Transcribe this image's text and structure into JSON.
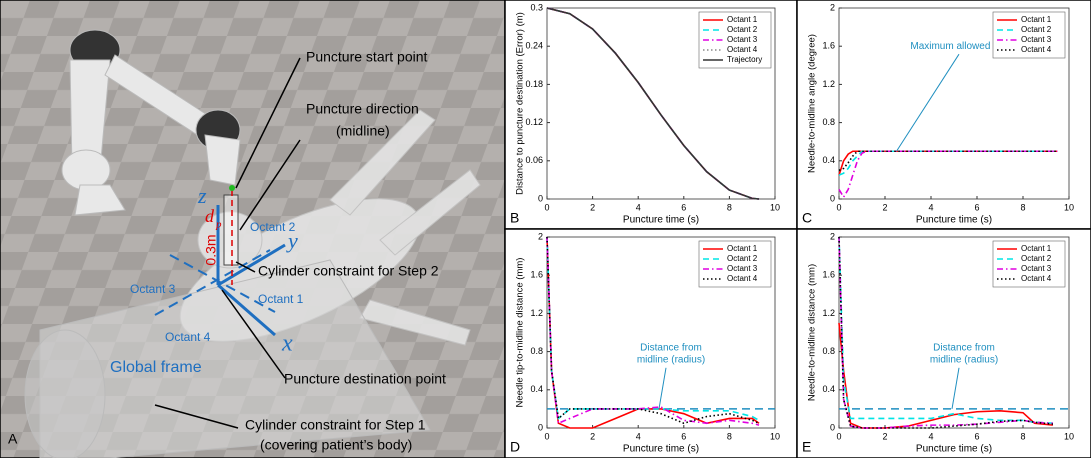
{
  "panel_a": {
    "panel": "A",
    "labels": {
      "start": "Puncture start point",
      "direction": [
        "Puncture direction",
        "(midline)"
      ],
      "octant2": "Octant 2",
      "octant3": "Octant 3",
      "octant1": "Octant 1",
      "octant4": "Octant 4",
      "global": "Global frame",
      "destination": "Puncture destination point",
      "step2": "Cylinder constraint for Step 2",
      "step1": [
        "Cylinder constraint for Step 1",
        "(covering patient’s body)"
      ],
      "z": "z",
      "y": "y",
      "x": "x",
      "d": "d",
      "p": "p",
      "dist": "0.3m"
    }
  },
  "chart_data": [
    {
      "type": "line",
      "panel": "B",
      "xlabel": "Puncture time (s)",
      "ylabel": "Distance to puncture destination (Error) (m)",
      "x": [
        0,
        1,
        2,
        3,
        4,
        5,
        6,
        7,
        8,
        9,
        9.3
      ],
      "series": [
        {
          "name": "Octant 1",
          "color": "#ff0000",
          "dash": "solid",
          "values": [
            0.3,
            0.291,
            0.267,
            0.229,
            0.183,
            0.132,
            0.084,
            0.043,
            0.014,
            0.001,
            0
          ]
        },
        {
          "name": "Octant 2",
          "color": "#00e5e5",
          "dash": "dashed",
          "values": [
            0.3,
            0.291,
            0.267,
            0.229,
            0.183,
            0.132,
            0.084,
            0.043,
            0.014,
            0.001,
            0
          ]
        },
        {
          "name": "Octant 3",
          "color": "#e000e0",
          "dash": "dashdot",
          "values": [
            0.3,
            0.291,
            0.267,
            0.229,
            0.183,
            0.132,
            0.084,
            0.043,
            0.014,
            0.001,
            0
          ]
        },
        {
          "name": "Octant 4",
          "color": "#888888",
          "dash": "dotted",
          "values": [
            0.3,
            0.291,
            0.267,
            0.229,
            0.183,
            0.132,
            0.084,
            0.043,
            0.014,
            0.001,
            0
          ]
        },
        {
          "name": "Trajectory",
          "color": "#333333",
          "dash": "solid",
          "values": [
            0.3,
            0.291,
            0.267,
            0.229,
            0.183,
            0.132,
            0.084,
            0.043,
            0.014,
            0.001,
            0
          ]
        }
      ],
      "xlim": [
        0,
        10
      ],
      "ylim": [
        0,
        0.3
      ],
      "xticks": [
        0,
        2,
        4,
        6,
        8,
        10
      ],
      "yticks": [
        0,
        0.06,
        0.12,
        0.18,
        0.24,
        0.3
      ],
      "legend": "upper right"
    },
    {
      "type": "line",
      "panel": "C",
      "xlabel": "Puncture time (s)",
      "ylabel": "Needle-to-midline angle (degree)",
      "x": [
        0,
        0.2,
        0.4,
        0.6,
        0.8,
        1,
        1.2,
        9.5
      ],
      "series": [
        {
          "name": "Octant 1",
          "color": "#ff0000",
          "dash": "solid",
          "values": [
            0.25,
            0.4,
            0.47,
            0.5,
            0.5,
            0.5,
            0.5,
            0.5
          ]
        },
        {
          "name": "Octant 2",
          "color": "#00e5e5",
          "dash": "dashed",
          "values": [
            0.25,
            0.27,
            0.32,
            0.4,
            0.45,
            0.5,
            0.5,
            0.5
          ]
        },
        {
          "name": "Octant 3",
          "color": "#e000e0",
          "dash": "dashdot",
          "values": [
            0.1,
            0.02,
            0.1,
            0.25,
            0.4,
            0.48,
            0.5,
            0.5
          ]
        },
        {
          "name": "Octant 4",
          "color": "#000000",
          "dash": "dotted",
          "values": [
            0.3,
            0.32,
            0.38,
            0.45,
            0.5,
            0.5,
            0.5,
            0.5
          ]
        }
      ],
      "xlim": [
        0,
        10
      ],
      "ylim": [
        0,
        2
      ],
      "xticks": [
        0,
        2,
        4,
        6,
        8,
        10
      ],
      "yticks": [
        0,
        0.4,
        0.8,
        1.2,
        1.6,
        2
      ],
      "legend": "upper right",
      "annotation": "Maximum allowed angle"
    },
    {
      "type": "line",
      "panel": "D",
      "xlabel": "Puncture time (s)",
      "ylabel": "Needle tip-to-midline distance (mm)",
      "x": [
        0,
        0.2,
        0.5,
        1,
        2,
        3,
        4,
        5,
        6,
        7,
        8,
        9,
        9.3
      ],
      "series": [
        {
          "name": "Octant 1",
          "color": "#ff0000",
          "dash": "solid",
          "values": [
            2,
            0.6,
            0.05,
            0,
            0,
            0.1,
            0.2,
            0.2,
            0.15,
            0.05,
            0.1,
            0.1,
            0.05
          ]
        },
        {
          "name": "Octant 2",
          "color": "#00e5e5",
          "dash": "dashed",
          "values": [
            2,
            0.6,
            0.1,
            0.2,
            0.2,
            0.2,
            0.2,
            0.2,
            0.18,
            0.18,
            0.18,
            0.12,
            0.08
          ]
        },
        {
          "name": "Octant 3",
          "color": "#e000e0",
          "dash": "dashdot",
          "values": [
            2,
            0.6,
            0.05,
            0.1,
            0.2,
            0.2,
            0.2,
            0.22,
            0.08,
            0.05,
            0.08,
            0.05,
            0.03
          ]
        },
        {
          "name": "Octant 4",
          "color": "#000000",
          "dash": "dotted",
          "values": [
            2,
            0.6,
            0.1,
            0.2,
            0.2,
            0.2,
            0.2,
            0.15,
            0.05,
            0.12,
            0.15,
            0.08,
            0.05
          ]
        }
      ],
      "xlim": [
        0,
        10
      ],
      "ylim": [
        0,
        2
      ],
      "xticks": [
        0,
        2,
        4,
        6,
        8,
        10
      ],
      "yticks": [
        0,
        0.4,
        0.8,
        1.2,
        1.6,
        2
      ],
      "legend": "upper right",
      "reference_line": 0.2,
      "annotation": [
        "Distance from",
        "midline (radius)"
      ]
    },
    {
      "type": "line",
      "panel": "E",
      "xlabel": "Puncture time (s)",
      "ylabel": "Needle-to-midline distance (mm)",
      "x": [
        0,
        0.2,
        0.5,
        1,
        2,
        3,
        4,
        5,
        6,
        7,
        8,
        8.5,
        9.3
      ],
      "series": [
        {
          "name": "Octant 1",
          "color": "#ff0000",
          "dash": "solid",
          "values": [
            1.1,
            0.6,
            0.05,
            0,
            0,
            0.02,
            0.08,
            0.14,
            0.17,
            0.18,
            0.16,
            0.05,
            0.03
          ]
        },
        {
          "name": "Octant 2",
          "color": "#00e5e5",
          "dash": "dashed",
          "values": [
            2,
            0.5,
            0.1,
            0.1,
            0.1,
            0.1,
            0.1,
            0.15,
            0.1,
            0.08,
            0.08,
            0.06,
            0.05
          ]
        },
        {
          "name": "Octant 3",
          "color": "#e000e0",
          "dash": "dashdot",
          "values": [
            2,
            0.3,
            0.02,
            0,
            0,
            0.02,
            0.03,
            0.03,
            0.04,
            0.06,
            0.08,
            0.06,
            0.05
          ]
        },
        {
          "name": "Octant 4",
          "color": "#000000",
          "dash": "dotted",
          "values": [
            2,
            0.3,
            0.02,
            0,
            0,
            0,
            0,
            0.02,
            0.04,
            0.07,
            0.08,
            0.06,
            0.04
          ]
        }
      ],
      "xlim": [
        0,
        10
      ],
      "ylim": [
        0,
        2
      ],
      "xticks": [
        0,
        2,
        4,
        6,
        8,
        10
      ],
      "yticks": [
        0,
        0.4,
        0.8,
        1.2,
        1.6,
        2
      ],
      "legend": "upper right",
      "reference_line": 0.2,
      "annotation": [
        "Distance from",
        "midline (radius)"
      ]
    }
  ]
}
